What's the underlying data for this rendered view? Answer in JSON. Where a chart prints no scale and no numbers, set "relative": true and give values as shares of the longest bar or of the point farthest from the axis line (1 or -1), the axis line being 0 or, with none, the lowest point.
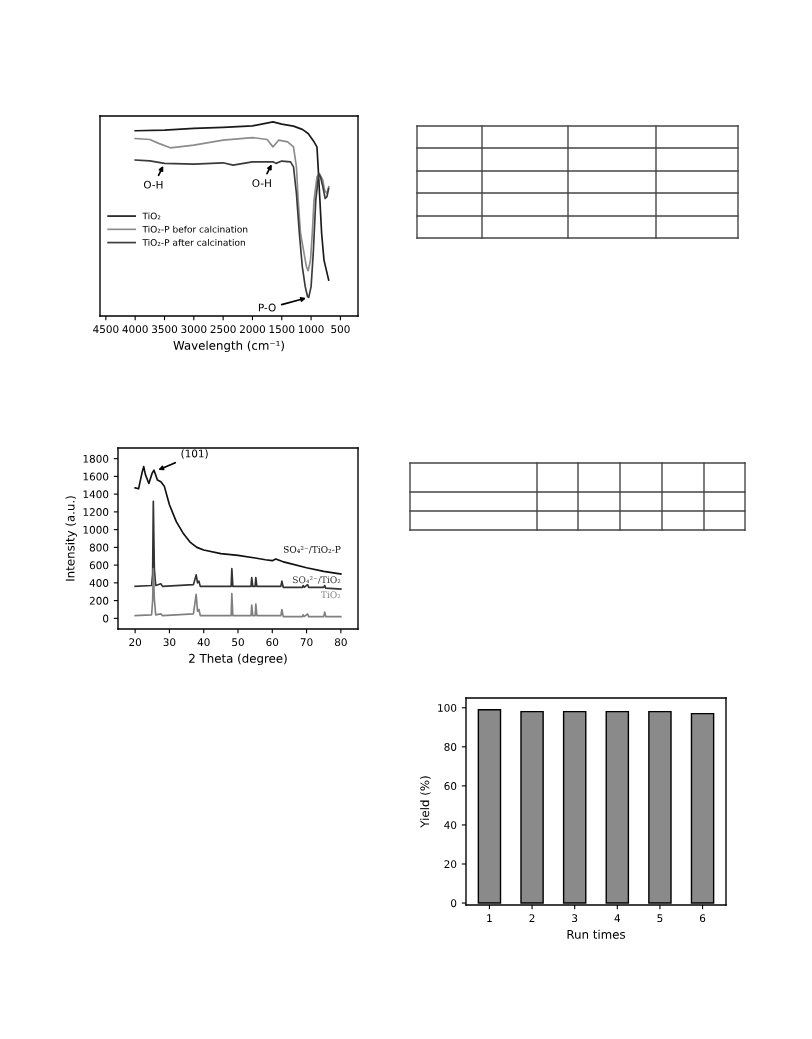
{
  "chart_data": [
    {
      "type": "line",
      "relative": true,
      "xlabel": "Wavelength (cm⁻¹)",
      "xlim": [
        4600,
        200
      ],
      "xticks": [
        4500,
        4000,
        3500,
        3000,
        2500,
        2000,
        1500,
        1000,
        500
      ],
      "tick_labels": "x",
      "legend": "left",
      "series": [
        {
          "name": "TiO₂",
          "color": "#1a1a1a",
          "x": [
            4000,
            3500,
            3000,
            2500,
            2000,
            1650,
            1500,
            1300,
            1150,
            1050,
            950,
            900,
            880,
            850,
            820,
            780,
            700
          ],
          "values": [
            0.954,
            0.957,
            0.966,
            0.971,
            0.979,
            1.0,
            0.988,
            0.978,
            0.961,
            0.94,
            0.897,
            0.871,
            0.768,
            0.597,
            0.425,
            0.288,
            0.185
          ]
        },
        {
          "name": "TiO₂-P befor calcination",
          "color": "#8c8c8c",
          "x": [
            4000,
            3750,
            3600,
            3400,
            3000,
            2500,
            2000,
            1750,
            1650,
            1550,
            1400,
            1300,
            1250,
            1220,
            1180,
            1120,
            1080,
            1050,
            1010,
            980,
            950,
            900,
            860,
            800,
            770,
            730,
            700
          ],
          "values": [
            0.914,
            0.909,
            0.889,
            0.866,
            0.88,
            0.906,
            0.919,
            0.909,
            0.871,
            0.906,
            0.897,
            0.871,
            0.768,
            0.597,
            0.425,
            0.322,
            0.254,
            0.233,
            0.288,
            0.425,
            0.597,
            0.717,
            0.734,
            0.7,
            0.648,
            0.631,
            0.666
          ]
        },
        {
          "name": "TiO₂-P after calcination",
          "color": "#3a3a3a",
          "x": [
            4000,
            3750,
            3500,
            3000,
            2500,
            2330,
            2000,
            1650,
            1600,
            1500,
            1350,
            1300,
            1250,
            1200,
            1150,
            1100,
            1060,
            1040,
            1000,
            960,
            920,
            870,
            840,
            800,
            760,
            730,
            700
          ],
          "values": [
            0.803,
            0.799,
            0.786,
            0.782,
            0.789,
            0.777,
            0.794,
            0.794,
            0.786,
            0.798,
            0.794,
            0.768,
            0.631,
            0.425,
            0.254,
            0.151,
            0.099,
            0.096,
            0.151,
            0.34,
            0.597,
            0.734,
            0.717,
            0.666,
            0.605,
            0.614,
            0.657
          ]
        }
      ],
      "annotations": [
        {
          "text": "O-H",
          "x": 3500,
          "y": 0.786
        },
        {
          "text": "O-H",
          "x": 1650,
          "y": 0.794
        },
        {
          "text": "P-O",
          "x": 1040,
          "y": 0.096
        }
      ]
    },
    {
      "type": "line",
      "xlabel": "2 Theta (degree)",
      "ylabel": "Intensity (a.u.)",
      "xlim": [
        15,
        85
      ],
      "xticks": [
        20,
        30,
        40,
        50,
        60,
        70,
        80
      ],
      "ylim": [
        -120,
        1920
      ],
      "yticks": [
        0,
        200,
        400,
        600,
        800,
        1000,
        1200,
        1400,
        1600,
        1800
      ],
      "series": [
        {
          "name": "SO₄²⁻/TiO₂-P",
          "color": "#111111",
          "x": [
            20,
            21,
            22,
            22.5,
            23,
            24,
            25,
            25.5,
            26.5,
            27.5,
            28.5,
            30,
            32,
            34,
            36,
            38,
            40,
            45,
            50,
            55,
            58,
            60,
            61,
            63,
            65,
            70,
            75,
            80
          ],
          "values": [
            1470,
            1460,
            1640,
            1710,
            1620,
            1520,
            1640,
            1670,
            1560,
            1540,
            1490,
            1280,
            1090,
            960,
            860,
            800,
            770,
            730,
            710,
            680,
            660,
            650,
            670,
            640,
            620,
            570,
            530,
            500
          ]
        },
        {
          "name": "SO₄²⁻/TiO₂",
          "color": "#333333",
          "x": [
            20,
            24.8,
            25.1,
            25.3,
            25.6,
            26,
            27.5,
            28,
            37,
            37.8,
            38.2,
            38.6,
            39,
            48,
            48.2,
            48.5,
            53.8,
            54,
            54.3,
            55,
            55.2,
            55.5,
            62.5,
            62.8,
            63.2,
            68.8,
            69,
            69.3,
            70.3,
            70.6,
            75,
            75.3,
            75.6,
            80
          ],
          "values": [
            360,
            370,
            500,
            1320,
            560,
            370,
            390,
            360,
            380,
            490,
            400,
            420,
            360,
            360,
            560,
            360,
            360,
            460,
            360,
            360,
            460,
            360,
            360,
            420,
            350,
            350,
            370,
            350,
            380,
            350,
            350,
            370,
            340,
            330
          ]
        },
        {
          "name": "TiO₂",
          "color": "#808080",
          "x": [
            20,
            24.8,
            25.1,
            25.3,
            25.6,
            26,
            27.5,
            28,
            37,
            37.8,
            38.2,
            38.6,
            39,
            48,
            48.2,
            48.5,
            53.8,
            54,
            54.3,
            55,
            55.2,
            55.5,
            62.5,
            62.8,
            63.2,
            68.8,
            69,
            69.3,
            70.3,
            70.6,
            75,
            75.3,
            75.6,
            80
          ],
          "values": [
            30,
            40,
            200,
            560,
            220,
            40,
            50,
            30,
            50,
            270,
            80,
            100,
            30,
            30,
            280,
            30,
            30,
            150,
            30,
            30,
            160,
            30,
            30,
            100,
            20,
            20,
            40,
            20,
            50,
            20,
            20,
            70,
            20,
            20
          ]
        }
      ],
      "annotations": [
        {
          "text": "(101)",
          "x": 26,
          "y": 1660
        }
      ]
    },
    {
      "type": "bar",
      "xlabel": "Run times",
      "ylabel": "Yield (%)",
      "categories": [
        "1",
        "2",
        "3",
        "4",
        "5",
        "6"
      ],
      "values": [
        99,
        98,
        98,
        98,
        98,
        97
      ],
      "color": "#8a8a8a",
      "ylim": [
        -1,
        105
      ],
      "yticks": [
        0,
        20,
        40,
        60,
        80,
        100
      ]
    }
  ]
}
